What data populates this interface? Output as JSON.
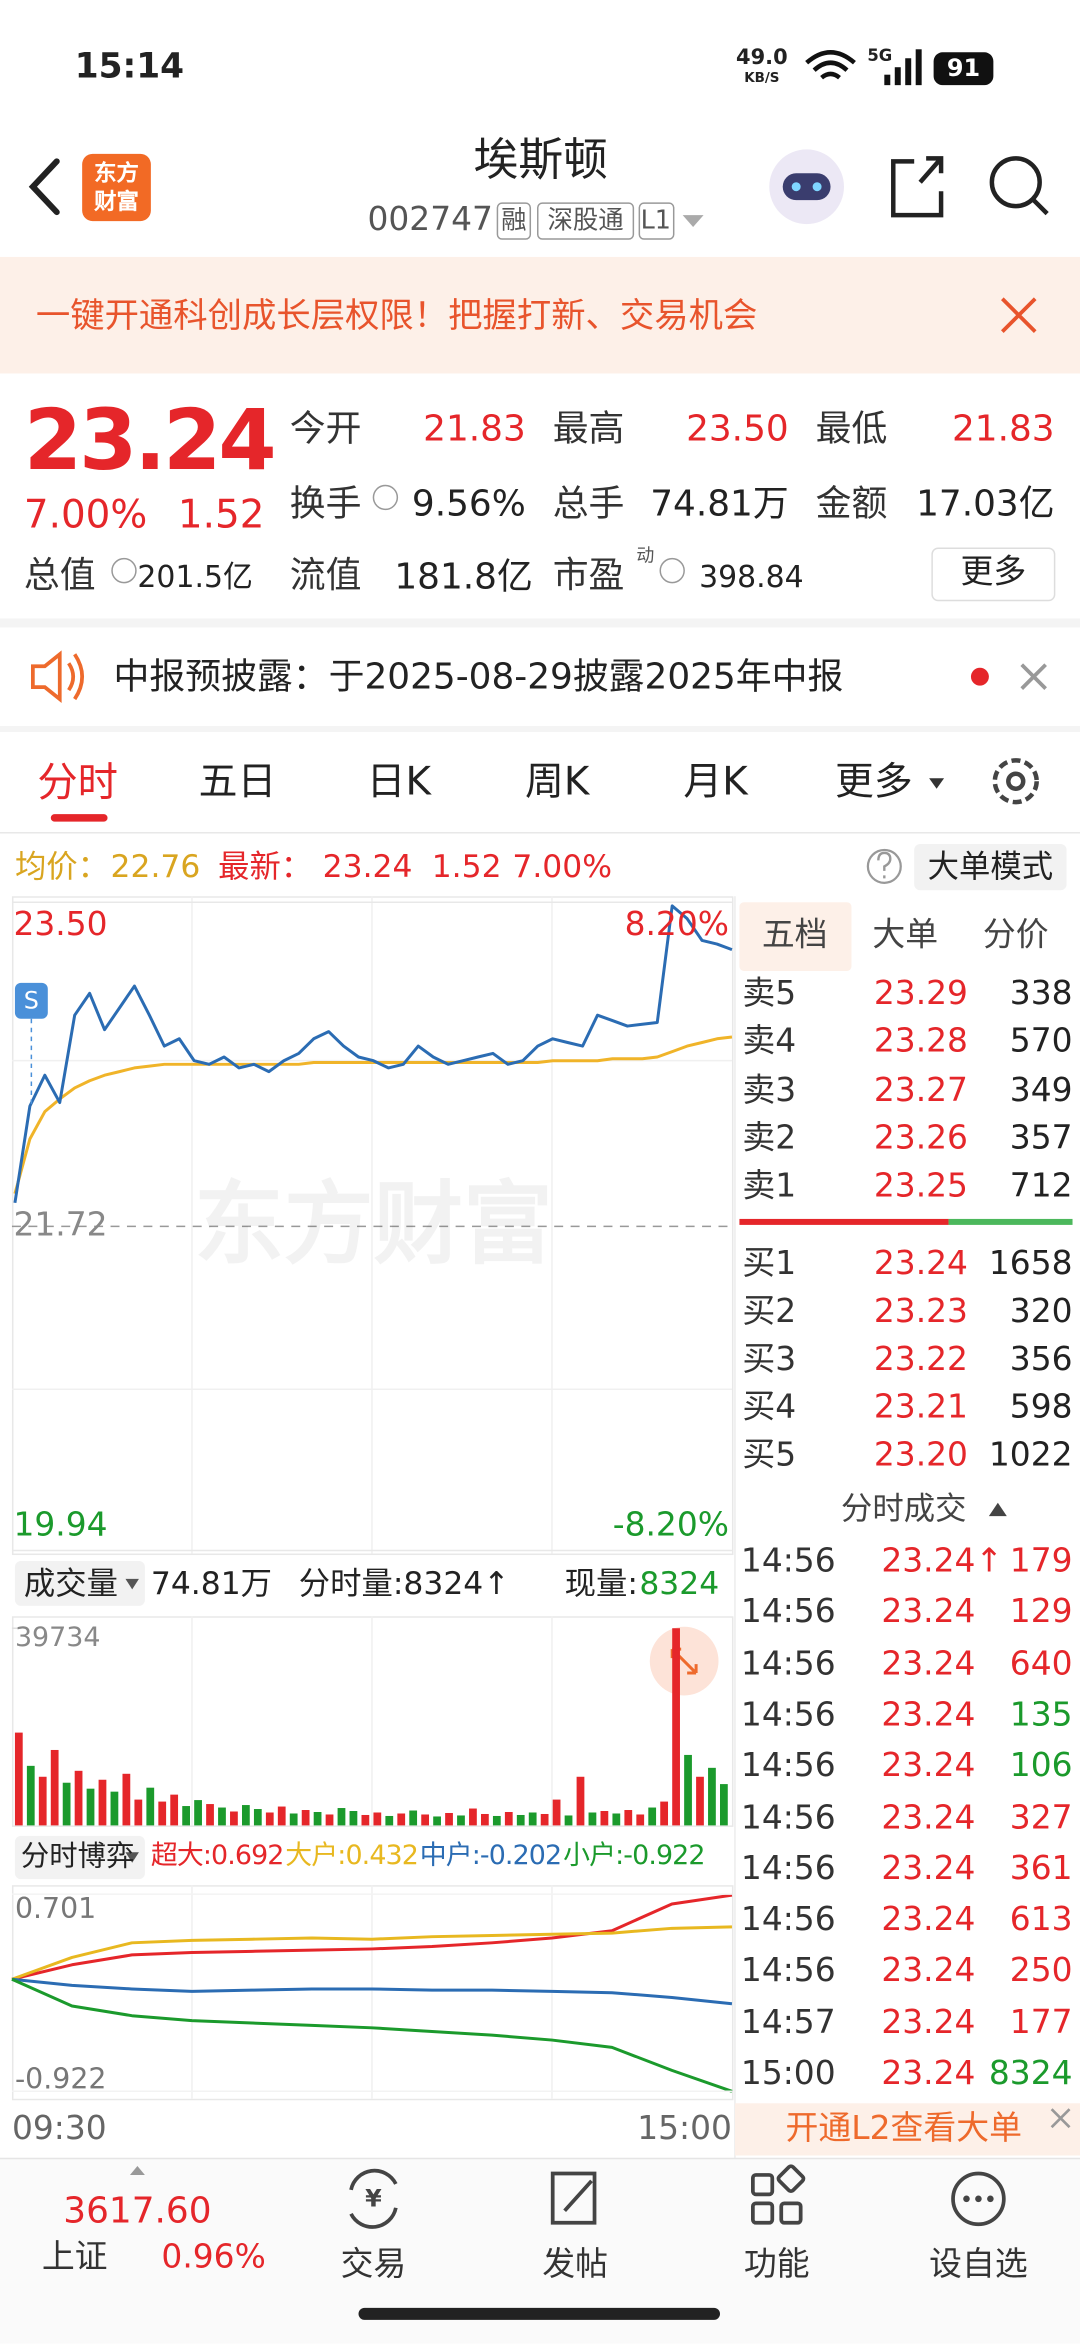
{
  "status_bar": {
    "time": "15:14",
    "speed": "49.0",
    "speed_unit": "KB/S",
    "network": "5G",
    "battery": "91"
  },
  "header": {
    "logo": [
      "东方",
      "财富"
    ],
    "title": "埃斯顿",
    "code": "002747",
    "badges": [
      "融",
      "深股通",
      "L1"
    ]
  },
  "banner": {
    "text": "一键开通科创成长层权限！把握打新、交易机会"
  },
  "quote": {
    "price": "23.24",
    "change_pct": "7.00%",
    "change": "1.52",
    "rows": [
      [
        {
          "label": "今开",
          "value": "21.83"
        },
        {
          "label": "最高",
          "value": "23.50"
        },
        {
          "label": "最低",
          "value": "21.83"
        }
      ],
      [
        {
          "label": "换手",
          "value": "9.56%"
        },
        {
          "label": "总手",
          "value": "74.81万"
        },
        {
          "label": "金额",
          "value": "17.03亿"
        }
      ],
      [
        {
          "label": "总值",
          "value": "201.5亿"
        },
        {
          "label": "流值",
          "value": "181.8亿"
        },
        {
          "label": "市盈",
          "sup": "动",
          "value": "398.84"
        }
      ]
    ],
    "more": "更多"
  },
  "notice": {
    "text": "中报预披露：于2025-08-29披露2025年中报"
  },
  "tabs": [
    "分时",
    "五日",
    "日K",
    "周K",
    "月K",
    "更多"
  ],
  "info_bar": {
    "avg_label": "均价：",
    "avg": "22.76",
    "last_label": "最新：",
    "last": "23.24",
    "change": "1.52",
    "change_pct": "7.00%",
    "mode_button": "大单模式"
  },
  "chart_data": [
    {
      "type": "line",
      "watermark": "东方财富",
      "marker": "S",
      "ylim": [
        19.94,
        23.5
      ],
      "yticks": [
        {
          "value": 23.5,
          "label": "23.50"
        },
        {
          "value": 21.72,
          "label": "21.72"
        },
        {
          "value": 19.94,
          "label": "19.94"
        }
      ],
      "right_labels": [
        "8.20%",
        "-8.20%"
      ],
      "x_labels": [
        "09:30",
        "15:00"
      ],
      "series": [
        {
          "color": "#2b6cb3",
          "values": [
            21.85,
            22.38,
            22.55,
            22.4,
            22.88,
            23.0,
            22.8,
            22.92,
            23.04,
            22.88,
            22.71,
            22.75,
            22.63,
            22.61,
            22.65,
            22.59,
            22.61,
            22.57,
            22.63,
            22.67,
            22.75,
            22.79,
            22.71,
            22.65,
            22.63,
            22.59,
            22.61,
            22.71,
            22.65,
            22.61,
            22.63,
            22.65,
            22.67,
            22.61,
            22.63,
            22.71,
            22.75,
            22.73,
            22.71,
            22.88,
            22.85,
            22.82,
            22.83,
            22.84,
            23.48,
            23.41,
            23.29,
            23.27,
            23.24
          ]
        },
        {
          "color": "#f0b429",
          "values": [
            21.9,
            22.2,
            22.35,
            22.42,
            22.48,
            22.52,
            22.55,
            22.57,
            22.59,
            22.6,
            22.61,
            22.61,
            22.61,
            22.61,
            22.61,
            22.61,
            22.61,
            22.61,
            22.61,
            22.61,
            22.62,
            22.62,
            22.62,
            22.62,
            22.62,
            22.62,
            22.62,
            22.62,
            22.62,
            22.62,
            22.62,
            22.62,
            22.62,
            22.62,
            22.62,
            22.62,
            22.63,
            22.63,
            22.63,
            22.63,
            22.64,
            22.64,
            22.64,
            22.65,
            22.68,
            22.71,
            22.73,
            22.75,
            22.76
          ]
        }
      ]
    },
    {
      "type": "bar",
      "selector": "成交量",
      "total": "74.81万",
      "period_volume": "分时量:8324↑",
      "current_label": "现量:",
      "current": "8324",
      "ylim": [
        0,
        39734
      ],
      "yticks": [
        39734
      ],
      "values": [
        18700,
        12000,
        9800,
        15200,
        8600,
        11000,
        7400,
        9200,
        6800,
        10400,
        5200,
        7600,
        4800,
        6200,
        3900,
        5100,
        4300,
        3600,
        2800,
        4100,
        3300,
        2600,
        3800,
        2400,
        3100,
        2700,
        2200,
        3500,
        2900,
        2100,
        2600,
        1900,
        2400,
        3000,
        2200,
        1800,
        2500,
        2000,
        3400,
        2300,
        1900,
        2700,
        2100,
        2600,
        2300,
        5200,
        2000,
        9800,
        2600,
        2900,
        2400,
        3100,
        2200,
        3600,
        4800,
        39734,
        14200,
        9800,
        11600,
        8324
      ],
      "colors": [
        "#e5262a",
        "#1b9a2c",
        "#e5262a",
        "#e5262a",
        "#1b9a2c",
        "#e5262a",
        "#1b9a2c",
        "#e5262a",
        "#1b9a2c",
        "#e5262a",
        "#e5262a",
        "#1b9a2c",
        "#e5262a",
        "#e5262a",
        "#1b9a2c",
        "#1b9a2c",
        "#e5262a",
        "#1b9a2c",
        "#e5262a",
        "#1b9a2c",
        "#1b9a2c",
        "#e5262a",
        "#e5262a",
        "#1b9a2c",
        "#e5262a",
        "#1b9a2c",
        "#e5262a",
        "#1b9a2c",
        "#1b9a2c",
        "#e5262a",
        "#e5262a",
        "#1b9a2c",
        "#e5262a",
        "#1b9a2c",
        "#e5262a",
        "#1b9a2c",
        "#e5262a",
        "#1b9a2c",
        "#e5262a",
        "#e5262a",
        "#1b9a2c",
        "#e5262a",
        "#1b9a2c",
        "#1b9a2c",
        "#e5262a",
        "#e5262a",
        "#1b9a2c",
        "#e5262a",
        "#1b9a2c",
        "#e5262a",
        "#1b9a2c",
        "#e5262a",
        "#e5262a",
        "#1b9a2c",
        "#e5262a",
        "#e5262a",
        "#1b9a2c",
        "#e5262a",
        "#1b9a2c",
        "#1b9a2c"
      ]
    },
    {
      "type": "line",
      "selector": "分时博弈",
      "ylim": [
        -0.922,
        0.701
      ],
      "yticks": [
        0.701,
        -0.922
      ],
      "series": [
        {
          "label": "超大:0.692",
          "color": "#e5262a",
          "values": [
            0,
            0.12,
            0.2,
            0.22,
            0.23,
            0.24,
            0.25,
            0.27,
            0.3,
            0.34,
            0.4,
            0.62,
            0.692
          ]
        },
        {
          "label": "大户:0.432",
          "color": "#e8b820",
          "values": [
            0,
            0.18,
            0.3,
            0.32,
            0.33,
            0.34,
            0.33,
            0.35,
            0.36,
            0.37,
            0.38,
            0.42,
            0.432
          ]
        },
        {
          "label": "中户:-0.202",
          "color": "#2b6cb3",
          "values": [
            0,
            -0.05,
            -0.08,
            -0.1,
            -0.09,
            -0.08,
            -0.08,
            -0.09,
            -0.09,
            -0.1,
            -0.11,
            -0.15,
            -0.202
          ]
        },
        {
          "label": "小户:-0.922",
          "color": "#1b9a2c",
          "values": [
            0,
            -0.22,
            -0.3,
            -0.34,
            -0.36,
            -0.38,
            -0.4,
            -0.43,
            -0.46,
            -0.5,
            -0.56,
            -0.75,
            -0.922
          ]
        }
      ]
    }
  ],
  "order_book": {
    "tabs": [
      "五档",
      "大单",
      "分价"
    ],
    "asks": [
      {
        "label": "卖5",
        "price": "23.29",
        "volume": "338"
      },
      {
        "label": "卖4",
        "price": "23.28",
        "volume": "570"
      },
      {
        "label": "卖3",
        "price": "23.27",
        "volume": "349"
      },
      {
        "label": "卖2",
        "price": "23.26",
        "volume": "357"
      },
      {
        "label": "卖1",
        "price": "23.25",
        "volume": "712"
      }
    ],
    "bids": [
      {
        "label": "买1",
        "price": "23.24",
        "volume": "1658"
      },
      {
        "label": "买2",
        "price": "23.23",
        "volume": "320"
      },
      {
        "label": "买3",
        "price": "23.22",
        "volume": "356"
      },
      {
        "label": "买4",
        "price": "23.21",
        "volume": "598"
      },
      {
        "label": "买5",
        "price": "23.20",
        "volume": "1022"
      }
    ]
  },
  "trades": {
    "title": "分时成交",
    "rows": [
      {
        "time": "14:56",
        "price": "23.24↑",
        "volume": "179",
        "color": "#e5262a"
      },
      {
        "time": "14:56",
        "price": "23.24",
        "volume": "129",
        "color": "#e5262a"
      },
      {
        "time": "14:56",
        "price": "23.24",
        "volume": "640",
        "color": "#e5262a"
      },
      {
        "time": "14:56",
        "price": "23.24",
        "volume": "135",
        "color": "#1b9a2c"
      },
      {
        "time": "14:56",
        "price": "23.24",
        "volume": "106",
        "color": "#1b9a2c"
      },
      {
        "time": "14:56",
        "price": "23.24",
        "volume": "327",
        "color": "#e5262a"
      },
      {
        "time": "14:56",
        "price": "23.24",
        "volume": "361",
        "color": "#e5262a"
      },
      {
        "time": "14:56",
        "price": "23.24",
        "volume": "613",
        "color": "#e5262a"
      },
      {
        "time": "14:56",
        "price": "23.24",
        "volume": "250",
        "color": "#e5262a"
      },
      {
        "time": "14:57",
        "price": "23.24",
        "volume": "177",
        "color": "#e5262a"
      },
      {
        "time": "15:00",
        "price": "23.24",
        "volume": "8324",
        "color": "#1b9a2c"
      }
    ],
    "l2_banner": "开通L2查看大单"
  },
  "bottom_nav": {
    "index_value": "3617.60",
    "index_name": "上证",
    "index_change": "0.96%",
    "trade_icon": "¥",
    "items": [
      "交易",
      "发帖",
      "功能",
      "设自选"
    ]
  }
}
